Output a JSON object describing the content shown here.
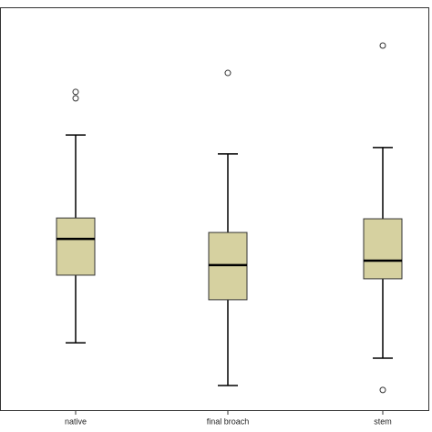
{
  "chart_data": {
    "type": "box",
    "categories": [
      "native",
      "final broach",
      "stem"
    ],
    "color": "#d6d1a0",
    "ylim": [
      0,
      100
    ],
    "boxes": [
      {
        "whisker_low": 16.7,
        "q1": 33.5,
        "median": 42.5,
        "q3": 47.7,
        "whisker_high": 68.3,
        "outliers": [
          79.0,
          77.4
        ]
      },
      {
        "whisker_low": 6.1,
        "q1": 27.4,
        "median": 36.0,
        "q3": 44.1,
        "whisker_high": 63.6,
        "outliers": [
          83.7
        ]
      },
      {
        "whisker_low": 12.9,
        "q1": 32.6,
        "median": 37.1,
        "q3": 47.5,
        "whisker_high": 65.2,
        "outliers": [
          90.5,
          5.0
        ]
      }
    ]
  }
}
